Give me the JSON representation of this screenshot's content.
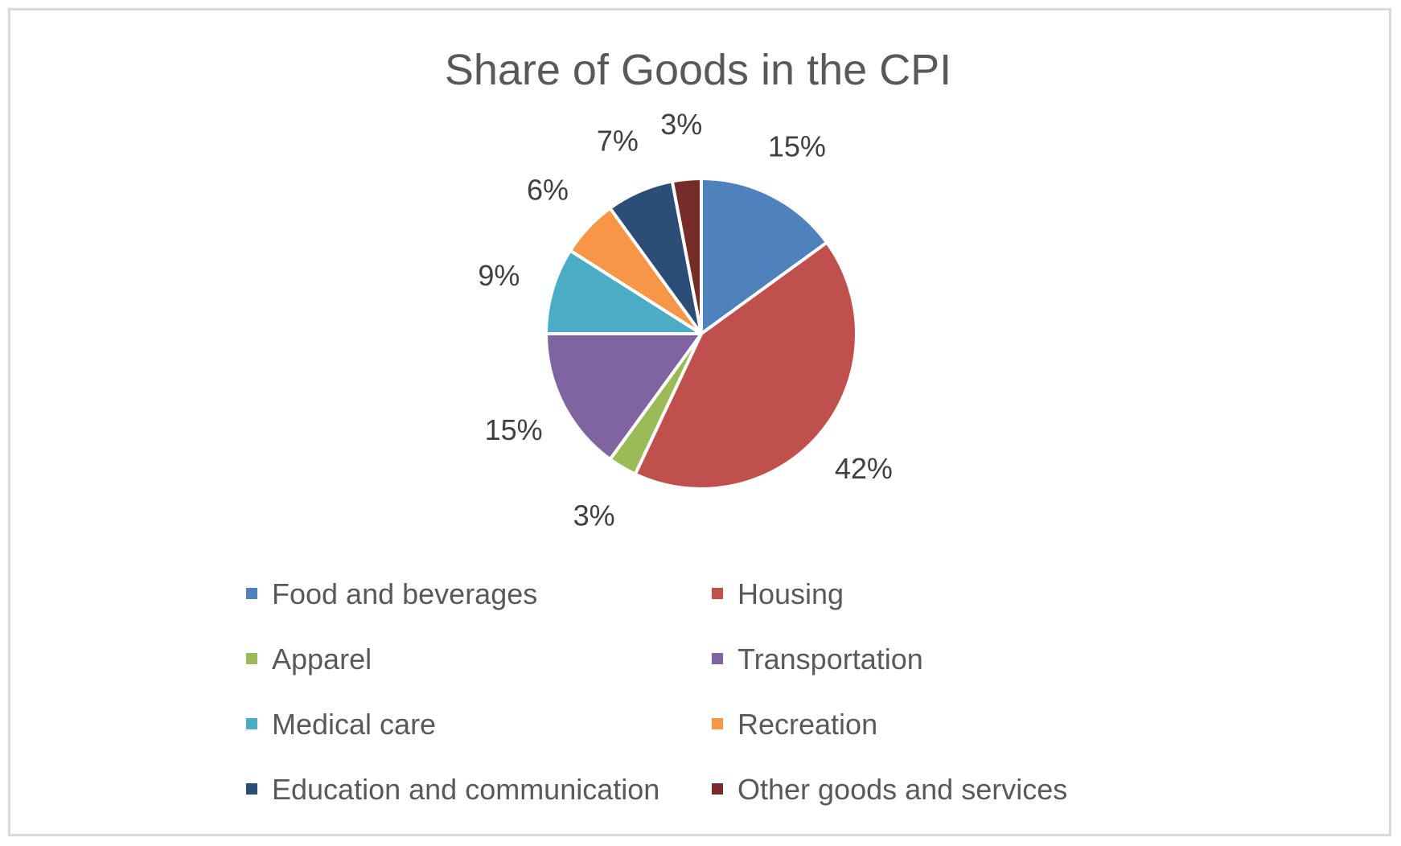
{
  "chart_data": {
    "type": "pie",
    "title": "Share of Goods in the CPI",
    "categories": [
      "Food and beverages",
      "Housing",
      "Apparel",
      "Transportation",
      "Medical care",
      "Recreation",
      "Education and communication",
      "Other goods and services"
    ],
    "values": [
      15,
      42,
      3,
      15,
      9,
      6,
      7,
      3
    ],
    "labels": [
      "15%",
      "42%",
      "3%",
      "15%",
      "9%",
      "6%",
      "7%",
      "3%"
    ],
    "colors": [
      "#4f81bd",
      "#c0504d",
      "#9bbb59",
      "#8064a2",
      "#4bacc6",
      "#f79646",
      "#2c4d75",
      "#772c2a"
    ],
    "start_angle_deg": 0,
    "direction": "clockwise",
    "legend_position": "bottom",
    "legend_columns": 2
  }
}
